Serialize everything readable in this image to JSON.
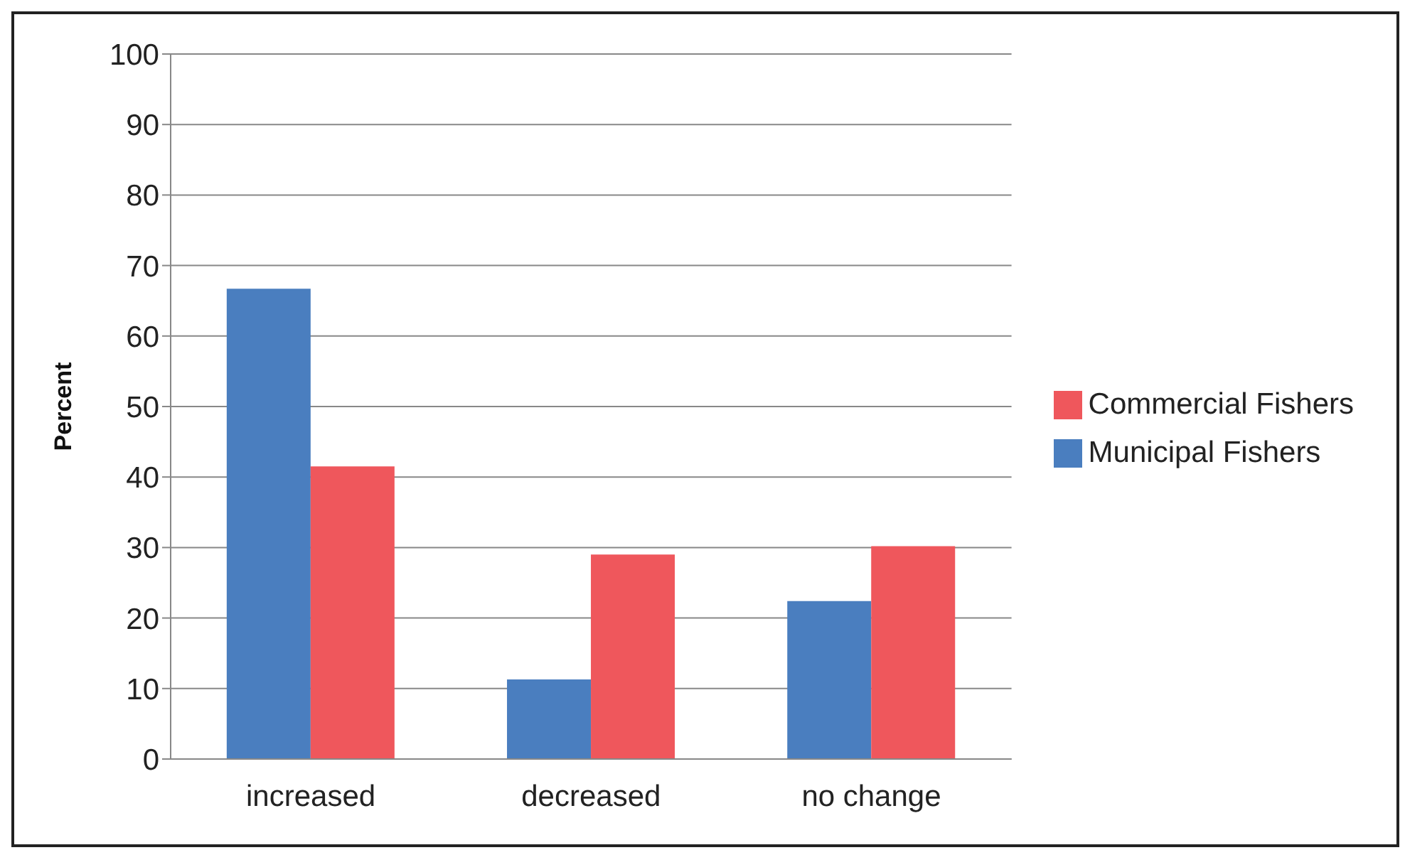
{
  "chart_data": {
    "type": "bar",
    "ylabel": "Percent",
    "categories": [
      "increased",
      "decreased",
      "no change"
    ],
    "series": [
      {
        "name": "Municipal Fishers",
        "color": "#4a7ebf",
        "values": [
          66.7,
          11.3,
          22.4
        ]
      },
      {
        "name": "Commercial Fishers",
        "color": "#ef575c",
        "values": [
          41.5,
          29.0,
          30.2
        ]
      }
    ],
    "ylim": [
      0,
      100
    ],
    "yticks": [
      0,
      10,
      20,
      30,
      40,
      50,
      60,
      70,
      80,
      90,
      100
    ],
    "grid": "y",
    "legend": "right"
  }
}
